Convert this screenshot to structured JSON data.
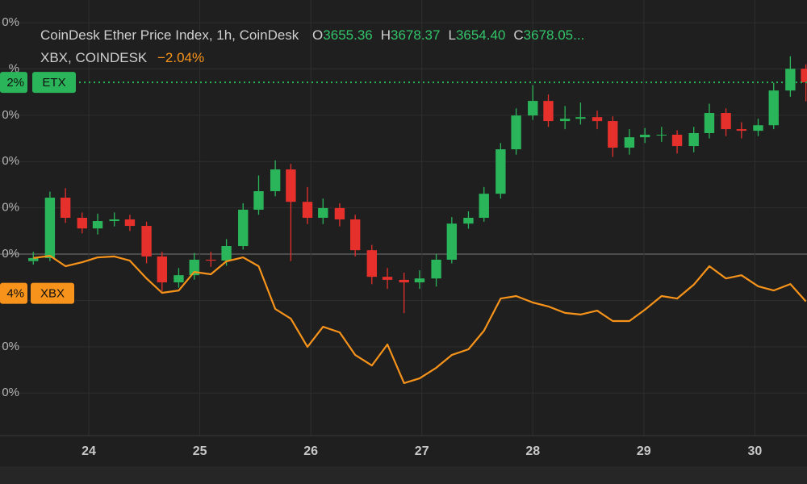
{
  "chart_data": {
    "type": "candlestick",
    "header": {
      "title": "CoinDesk Ether Price Index, 1h, CoinDesk",
      "ohlc": [
        {
          "key": "O",
          "text": "3655.36"
        },
        {
          "key": "H",
          "text": "3678.37"
        },
        {
          "key": "L",
          "text": "3654.40"
        },
        {
          "key": "C",
          "text": "3678.05..."
        }
      ],
      "second": "XBX, COINDESK",
      "change": "−2.04%"
    },
    "x": [
      23.5,
      23.65,
      23.79,
      23.94,
      24.08,
      24.23,
      24.37,
      24.52,
      24.66,
      24.81,
      24.95,
      25.1,
      25.24,
      25.39,
      25.53,
      25.68,
      25.82,
      25.97,
      26.11,
      26.26,
      26.4,
      26.55,
      26.69,
      26.84,
      26.98,
      27.13,
      27.27,
      27.42,
      27.56,
      27.71,
      27.85,
      28.0,
      28.14,
      28.29,
      28.43,
      28.58,
      28.72,
      28.87,
      29.01,
      29.16,
      29.3,
      29.45,
      29.59,
      29.74,
      29.88,
      30.03,
      30.17,
      30.32,
      30.46
    ],
    "xlim": [
      23.2,
      30.47
    ],
    "xticks": [
      24,
      25,
      26,
      27,
      28,
      29,
      30
    ],
    "ylim": [
      -7.84,
      10.98
    ],
    "yticks": [
      {
        "value": 10,
        "label": "0%"
      },
      {
        "value": 8,
        "label": "%"
      },
      {
        "value": 6,
        "label": "0%"
      },
      {
        "value": 4,
        "label": "0%"
      },
      {
        "value": 2,
        "label": "0%"
      },
      {
        "value": 0,
        "label": "0%"
      },
      {
        "value": -2,
        "label": null
      },
      {
        "value": -4,
        "label": "0%"
      },
      {
        "value": -6,
        "label": "0%"
      }
    ],
    "grid": true,
    "series": [
      {
        "name": "ETX",
        "type": "candlestick",
        "up_color": "#2bb55a",
        "down_color": "#e5302c",
        "last_label": "2%",
        "open": [
          -0.3,
          -0.17,
          2.44,
          1.57,
          1.11,
          1.43,
          1.5,
          1.22,
          -0.1,
          -1.22,
          -0.91,
          -0.24,
          -0.28,
          0.35,
          1.92,
          2.72,
          3.66,
          2.26,
          1.57,
          1.99,
          1.5,
          0.17,
          -0.98,
          -1.11,
          -1.22,
          -1.05,
          -0.24,
          1.32,
          1.57,
          2.61,
          4.53,
          5.99,
          6.62,
          5.75,
          5.85,
          5.92,
          5.75,
          4.6,
          5.05,
          5.16,
          5.16,
          4.67,
          5.23,
          6.1,
          5.4,
          5.33,
          5.57,
          7.07,
          8.01
        ],
        "high": [
          0.1,
          2.7,
          2.85,
          1.8,
          1.75,
          1.8,
          1.7,
          1.4,
          0.1,
          -0.6,
          0.05,
          0.1,
          0.65,
          2.2,
          3.4,
          4.05,
          3.9,
          2.9,
          2.4,
          2.2,
          1.7,
          0.4,
          -0.6,
          -0.8,
          -0.7,
          0.0,
          1.6,
          1.85,
          2.9,
          4.8,
          6.3,
          7.3,
          6.9,
          6.4,
          6.55,
          6.2,
          5.95,
          5.4,
          5.45,
          5.5,
          5.35,
          5.5,
          6.5,
          6.3,
          5.7,
          5.85,
          7.4,
          8.55,
          8.2
        ],
        "low": [
          -0.45,
          -0.3,
          1.35,
          0.9,
          0.85,
          1.2,
          1.0,
          -0.4,
          -1.6,
          -1.45,
          -1.1,
          -0.55,
          -0.5,
          0.2,
          1.7,
          2.5,
          -0.3,
          1.3,
          1.3,
          1.2,
          -0.1,
          -1.3,
          -1.5,
          -2.55,
          -1.5,
          -1.4,
          -0.4,
          1.1,
          1.4,
          2.4,
          4.3,
          5.8,
          5.5,
          5.4,
          5.6,
          5.4,
          4.2,
          4.3,
          4.8,
          4.85,
          4.35,
          4.4,
          5.0,
          5.1,
          5.0,
          5.1,
          5.4,
          6.8,
          6.6
        ],
        "close": [
          -0.17,
          2.44,
          1.57,
          1.11,
          1.43,
          1.5,
          1.22,
          -0.1,
          -1.22,
          -0.91,
          -0.24,
          -0.28,
          0.35,
          1.92,
          2.72,
          3.66,
          2.26,
          1.57,
          1.99,
          1.5,
          0.17,
          -0.98,
          -1.11,
          -1.22,
          -1.05,
          -0.24,
          1.32,
          1.57,
          2.61,
          4.53,
          5.99,
          6.62,
          5.75,
          5.85,
          5.92,
          5.75,
          4.6,
          5.05,
          5.16,
          5.16,
          4.67,
          5.23,
          6.1,
          5.4,
          5.33,
          5.57,
          7.07,
          8.01,
          7.42
        ]
      },
      {
        "name": "XBX",
        "type": "line",
        "color": "#f7931a",
        "last_label": "4%",
        "values": [
          -0.17,
          -0.07,
          -0.52,
          -0.35,
          -0.14,
          -0.1,
          -0.28,
          -1.05,
          -1.67,
          -1.57,
          -0.77,
          -0.87,
          -0.31,
          -0.14,
          -0.52,
          -2.37,
          -2.79,
          -4.01,
          -3.14,
          -3.38,
          -4.36,
          -4.81,
          -3.9,
          -5.57,
          -5.37,
          -4.91,
          -4.36,
          -4.11,
          -3.31,
          -1.92,
          -1.81,
          -2.09,
          -2.26,
          -2.54,
          -2.61,
          -2.44,
          -2.89,
          -2.89,
          -2.4,
          -1.81,
          -1.92,
          -1.32,
          -0.52,
          -1.05,
          -0.91,
          -1.39,
          -1.57,
          -1.29,
          -2.04
        ]
      }
    ]
  }
}
